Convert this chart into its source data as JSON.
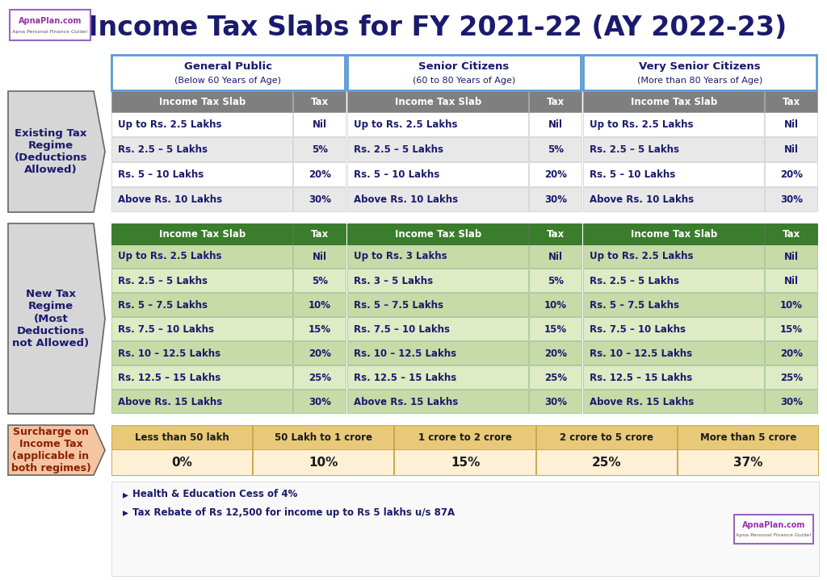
{
  "title": "Income Tax Slabs for FY 2021-22 (AY 2022-23)",
  "bg_color": "#FFFFFF",
  "title_color": "#1a1a6e",
  "section_headers": [
    "General Public\n(Below 60 Years of Age)",
    "Senior Citizens\n(60 to 80 Years of Age)",
    "Very Senior Citizens\n(More than 80 Years of Age)"
  ],
  "existing_label": "Existing Tax\nRegime\n(Deductions\nAllowed)",
  "new_label": "New Tax\nRegime\n(Most\nDeductions\nnot Allowed)",
  "surcharge_label": "Surcharge on\nIncome Tax\n(applicable in\nboth regimes)",
  "existing_header_color": "#7f7f7f",
  "new_header_color": "#3a7d2c",
  "surcharge_header_bg": "#e8c97a",
  "surcharge_row_bg": "#fdf0d5",
  "existing_regime": {
    "general": [
      [
        "Up to Rs. 2.5 Lakhs",
        "Nil"
      ],
      [
        "Rs. 2.5 – 5 Lakhs",
        "5%"
      ],
      [
        "Rs. 5 – 10 Lakhs",
        "20%"
      ],
      [
        "Above Rs. 10 Lakhs",
        "30%"
      ]
    ],
    "senior": [
      [
        "Up to Rs. 2.5 Lakhs",
        "Nil"
      ],
      [
        "Rs. 2.5 – 5 Lakhs",
        "5%"
      ],
      [
        "Rs. 5 – 10 Lakhs",
        "20%"
      ],
      [
        "Above Rs. 10 Lakhs",
        "30%"
      ]
    ],
    "very_senior": [
      [
        "Up to Rs. 2.5 Lakhs",
        "Nil"
      ],
      [
        "Rs. 2.5 – 5 Lakhs",
        "Nil"
      ],
      [
        "Rs. 5 – 10 Lakhs",
        "20%"
      ],
      [
        "Above Rs. 10 Lakhs",
        "30%"
      ]
    ]
  },
  "new_regime": {
    "general": [
      [
        "Up to Rs. 2.5 Lakhs",
        "Nil"
      ],
      [
        "Rs. 2.5 – 5 Lakhs",
        "5%"
      ],
      [
        "Rs. 5 – 7.5 Lakhs",
        "10%"
      ],
      [
        "Rs. 7.5 – 10 Lakhs",
        "15%"
      ],
      [
        "Rs. 10 – 12.5 Lakhs",
        "20%"
      ],
      [
        "Rs. 12.5 – 15 Lakhs",
        "25%"
      ],
      [
        "Above Rs. 15 Lakhs",
        "30%"
      ]
    ],
    "senior": [
      [
        "Up to Rs. 3 Lakhs",
        "Nil"
      ],
      [
        "Rs. 3 – 5 Lakhs",
        "5%"
      ],
      [
        "Rs. 5 – 7.5 Lakhs",
        "10%"
      ],
      [
        "Rs. 7.5 – 10 Lakhs",
        "15%"
      ],
      [
        "Rs. 10 – 12.5 Lakhs",
        "20%"
      ],
      [
        "Rs. 12.5 – 15 Lakhs",
        "25%"
      ],
      [
        "Above Rs. 15 Lakhs",
        "30%"
      ]
    ],
    "very_senior": [
      [
        "Up to Rs. 2.5 Lakhs",
        "Nil"
      ],
      [
        "Rs. 2.5 – 5 Lakhs",
        "Nil"
      ],
      [
        "Rs. 5 – 7.5 Lakhs",
        "10%"
      ],
      [
        "Rs. 7.5 – 10 Lakhs",
        "15%"
      ],
      [
        "Rs. 10 – 12.5 Lakhs",
        "20%"
      ],
      [
        "Rs. 12.5 – 15 Lakhs",
        "25%"
      ],
      [
        "Above Rs. 15 Lakhs",
        "30%"
      ]
    ]
  },
  "surcharge": {
    "headers": [
      "Less than 50 lakh",
      "50 Lakh to 1 crore",
      "1 crore to 2 crore",
      "2 crore to 5 crore",
      "More than 5 crore"
    ],
    "values": [
      "0%",
      "10%",
      "15%",
      "25%",
      "37%"
    ]
  },
  "footnotes": [
    "Health & Education Cess of 4%",
    "Tax Rebate of Rs 12,500 for income up to Rs 5 lakhs u/s 87A"
  ],
  "label_bg_existing": "#d6d6d6",
  "label_bg_new": "#d6d6d6",
  "label_bg_surcharge": "#f5c5a3",
  "label_text_existing": "#1a1a6e",
  "label_text_new": "#1a1a6e",
  "label_text_surcharge": "#8b2000",
  "section_header_border": "#5b9bd5",
  "table_text_color": "#1a1a6e",
  "existing_row_even": "#ffffff",
  "existing_row_odd": "#e8e8e8",
  "new_row_even": "#c6dba8",
  "new_row_odd": "#deebc4"
}
